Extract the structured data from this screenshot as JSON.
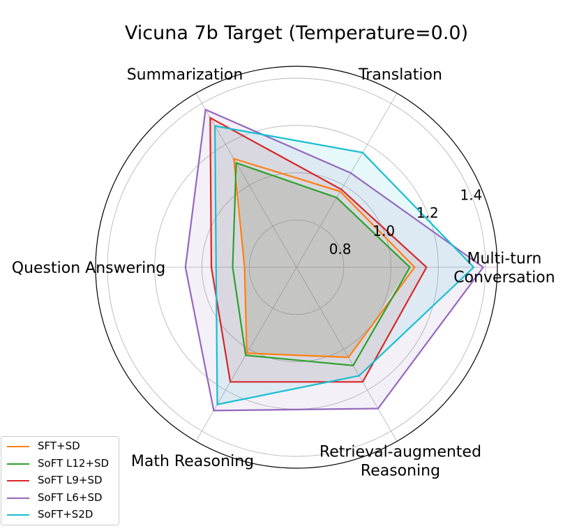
{
  "chart_data": {
    "type": "radar",
    "title": "Vicuna 7b Target (Temperature=0.0)",
    "axes": [
      [
        "Multi-turn",
        "Conversation"
      ],
      [
        "Translation"
      ],
      [
        "Summarization"
      ],
      [
        "Question Answering"
      ],
      [
        "Math Reasoning"
      ],
      [
        "Retrieval-augmented",
        "Reasoning"
      ]
    ],
    "rlim": [
      0.6,
      1.45
    ],
    "rticks": [
      0.8,
      1.0,
      1.2,
      1.4
    ],
    "rtick_labels": [
      "0.8",
      "1.0",
      "1.2",
      "1.4"
    ],
    "grid": true,
    "legend_position": "lower-left",
    "series": [
      {
        "name": "SFT+SD",
        "color": "#ff7f0e",
        "fill": false,
        "values": [
          1.1,
          0.97,
          1.13,
          0.82,
          1.02,
          1.04
        ]
      },
      {
        "name": "SoFT L12+SD",
        "color": "#2ca02c",
        "fill": false,
        "values": [
          1.08,
          0.94,
          1.11,
          0.87,
          1.03,
          1.08
        ]
      },
      {
        "name": "SoFT L9+SD",
        "color": "#d62728",
        "fill": true,
        "values": [
          1.15,
          0.98,
          1.33,
          0.96,
          1.16,
          1.16
        ]
      },
      {
        "name": "SoFT L6+SD",
        "color": "#9467bd",
        "fill": true,
        "values": [
          1.39,
          1.06,
          1.37,
          1.07,
          1.3,
          1.29
        ]
      },
      {
        "name": "SoFT+S2D",
        "color": "#17becf",
        "fill": true,
        "values": [
          1.35,
          1.16,
          1.29,
          0.94,
          1.27,
          1.13
        ]
      }
    ]
  }
}
